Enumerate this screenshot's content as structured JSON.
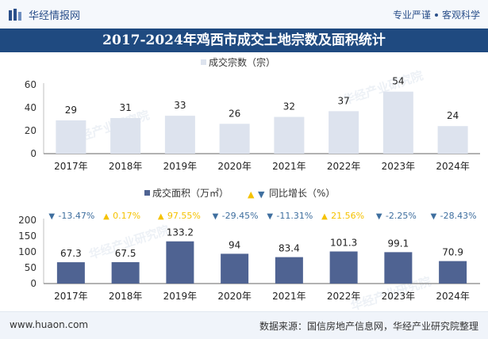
{
  "header": {
    "brand": "华经情报网",
    "tagline_left": "专业严谨",
    "tagline_right": "客观科学"
  },
  "title": "2017-2024年鸡西市成交土地宗数及面积统计",
  "footer": {
    "url": "www.huaon.com",
    "source": "数据来源：国信房地产信息网，华经产业研究院整理"
  },
  "watermark": "华经产业研究院",
  "colors": {
    "bar_light": "#dde3ee",
    "bar_dark": "#4f6392",
    "up": "#f5c200",
    "down": "#3f6f9f",
    "title_bg": "#1f4a80"
  },
  "chart_data": [
    {
      "type": "bar",
      "legend": "成交宗数（宗）",
      "categories": [
        "2017年",
        "2018年",
        "2019年",
        "2020年",
        "2021年",
        "2022年",
        "2023年",
        "2024年"
      ],
      "values": [
        29,
        31,
        33,
        26,
        32,
        37,
        54,
        24
      ],
      "yticks": [
        "0",
        "20",
        "40",
        "60"
      ],
      "ylim": [
        0,
        60
      ]
    },
    {
      "type": "bar",
      "legend": "成交面积（万㎡）",
      "legend_growth": "同比增长（%）",
      "categories": [
        "2017年",
        "2018年",
        "2019年",
        "2020年",
        "2021年",
        "2022年",
        "2023年",
        "2024年"
      ],
      "values": [
        67.3,
        67.5,
        133.2,
        94,
        83.4,
        101.3,
        99.1,
        70.9
      ],
      "growth_labels": [
        "-13.47%",
        "0.17%",
        "97.55%",
        "-29.45%",
        "-11.31%",
        "21.56%",
        "-2.25%",
        "-28.43%"
      ],
      "growth_direction": [
        "down",
        "up",
        "up",
        "down",
        "down",
        "up",
        "down",
        "down"
      ],
      "yticks": [
        "0",
        "50",
        "100",
        "150",
        "200"
      ],
      "ylim": [
        0,
        200
      ]
    }
  ]
}
